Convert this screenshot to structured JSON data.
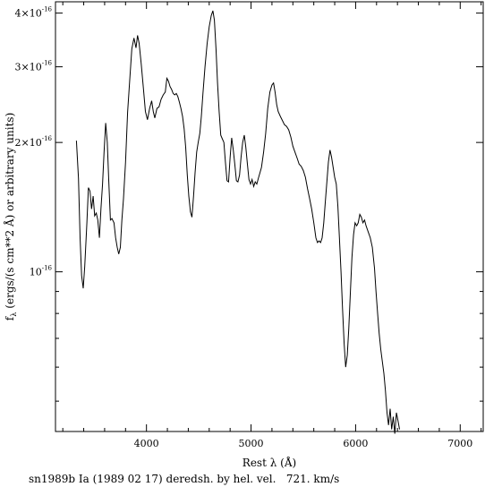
{
  "chart_data": {
    "type": "line",
    "xlabel": "Rest λ (Å)",
    "ylabel": "fλ (ergs/(s cm**2 Å) or arbitrary units)",
    "ylabel_main": "(ergs/(s cm**2 Å) or arbitrary units)",
    "ylabel_symbol": "f",
    "ylabel_sub": "λ",
    "caption": "sn1989b Ia (1989 02 17) deredsh. by hel. vel.   721. km/s",
    "xlim": [
      3130,
      7220
    ],
    "ylim": [
      7.2e-16,
      4.25e-16
    ],
    "y_scale": "log",
    "x_ticks": [
      {
        "value": 4000,
        "label": "4000"
      },
      {
        "value": 5000,
        "label": "5000"
      },
      {
        "value": 6000,
        "label": "6000"
      },
      {
        "value": 7000,
        "label": "7000"
      }
    ],
    "y_ticks": [
      {
        "value": 4e-16,
        "label_mant": "4×10",
        "label_exp": "-16"
      },
      {
        "value": 3e-16,
        "label_mant": "3×10",
        "label_exp": "-16"
      },
      {
        "value": 2e-16,
        "label_mant": "2×10",
        "label_exp": "-16"
      },
      {
        "value": 1e-16,
        "label_mant": "10",
        "label_exp": "-16"
      }
    ],
    "series": [
      {
        "color": "#000000",
        "points": [
          [
            3330,
            2.02e-16
          ],
          [
            3350,
            1.65e-16
          ],
          [
            3365,
            1.2e-16
          ],
          [
            3380,
            9.8e-17
          ],
          [
            3395,
            9.15e-17
          ],
          [
            3410,
            1.03e-16
          ],
          [
            3430,
            1.3e-16
          ],
          [
            3445,
            1.57e-16
          ],
          [
            3460,
            1.54e-16
          ],
          [
            3475,
            1.4e-16
          ],
          [
            3490,
            1.5e-16
          ],
          [
            3505,
            1.35e-16
          ],
          [
            3520,
            1.37e-16
          ],
          [
            3535,
            1.32e-16
          ],
          [
            3550,
            1.2e-16
          ],
          [
            3565,
            1.4e-16
          ],
          [
            3580,
            1.6e-16
          ],
          [
            3595,
            1.9e-16
          ],
          [
            3610,
            2.22e-16
          ],
          [
            3625,
            2e-16
          ],
          [
            3640,
            1.62e-16
          ],
          [
            3655,
            1.32e-16
          ],
          [
            3670,
            1.33e-16
          ],
          [
            3690,
            1.3e-16
          ],
          [
            3705,
            1.2e-16
          ],
          [
            3720,
            1.14e-16
          ],
          [
            3735,
            1.1e-16
          ],
          [
            3750,
            1.14e-16
          ],
          [
            3765,
            1.32e-16
          ],
          [
            3780,
            1.48e-16
          ],
          [
            3800,
            1.8e-16
          ],
          [
            3820,
            2.35e-16
          ],
          [
            3840,
            2.8e-16
          ],
          [
            3860,
            3.3e-16
          ],
          [
            3880,
            3.5e-16
          ],
          [
            3900,
            3.32e-16
          ],
          [
            3915,
            3.55e-16
          ],
          [
            3930,
            3.4e-16
          ],
          [
            3950,
            3.05e-16
          ],
          [
            3970,
            2.68e-16
          ],
          [
            3990,
            2.36e-16
          ],
          [
            4010,
            2.26e-16
          ],
          [
            4030,
            2.4e-16
          ],
          [
            4050,
            2.5e-16
          ],
          [
            4065,
            2.36e-16
          ],
          [
            4080,
            2.28e-16
          ],
          [
            4100,
            2.4e-16
          ],
          [
            4120,
            2.42e-16
          ],
          [
            4140,
            2.52e-16
          ],
          [
            4160,
            2.58e-16
          ],
          [
            4180,
            2.62e-16
          ],
          [
            4195,
            2.82e-16
          ],
          [
            4210,
            2.78e-16
          ],
          [
            4225,
            2.7e-16
          ],
          [
            4240,
            2.66e-16
          ],
          [
            4255,
            2.6e-16
          ],
          [
            4270,
            2.58e-16
          ],
          [
            4285,
            2.6e-16
          ],
          [
            4300,
            2.56e-16
          ],
          [
            4315,
            2.48e-16
          ],
          [
            4330,
            2.4e-16
          ],
          [
            4345,
            2.3e-16
          ],
          [
            4360,
            2.15e-16
          ],
          [
            4375,
            1.95e-16
          ],
          [
            4390,
            1.68e-16
          ],
          [
            4405,
            1.5e-16
          ],
          [
            4420,
            1.38e-16
          ],
          [
            4435,
            1.34e-16
          ],
          [
            4450,
            1.5e-16
          ],
          [
            4465,
            1.7e-16
          ],
          [
            4480,
            1.9e-16
          ],
          [
            4495,
            2e-16
          ],
          [
            4510,
            2.1e-16
          ],
          [
            4525,
            2.3e-16
          ],
          [
            4540,
            2.6e-16
          ],
          [
            4560,
            3e-16
          ],
          [
            4580,
            3.4e-16
          ],
          [
            4600,
            3.72e-16
          ],
          [
            4620,
            3.95e-16
          ],
          [
            4635,
            4.05e-16
          ],
          [
            4650,
            3.85e-16
          ],
          [
            4665,
            3.3e-16
          ],
          [
            4680,
            2.75e-16
          ],
          [
            4695,
            2.36e-16
          ],
          [
            4710,
            2.08e-16
          ],
          [
            4725,
            2.04e-16
          ],
          [
            4740,
            2e-16
          ],
          [
            4755,
            1.8e-16
          ],
          [
            4770,
            1.63e-16
          ],
          [
            4785,
            1.62e-16
          ],
          [
            4800,
            1.85e-16
          ],
          [
            4815,
            2.05e-16
          ],
          [
            4830,
            1.92e-16
          ],
          [
            4845,
            1.78e-16
          ],
          [
            4860,
            1.63e-16
          ],
          [
            4875,
            1.62e-16
          ],
          [
            4890,
            1.68e-16
          ],
          [
            4905,
            1.85e-16
          ],
          [
            4920,
            2e-16
          ],
          [
            4935,
            2.08e-16
          ],
          [
            4950,
            1.95e-16
          ],
          [
            4965,
            1.78e-16
          ],
          [
            4980,
            1.64e-16
          ],
          [
            4995,
            1.6e-16
          ],
          [
            5010,
            1.64e-16
          ],
          [
            5025,
            1.58e-16
          ],
          [
            5040,
            1.62e-16
          ],
          [
            5055,
            1.6e-16
          ],
          [
            5070,
            1.65e-16
          ],
          [
            5085,
            1.7e-16
          ],
          [
            5100,
            1.75e-16
          ],
          [
            5120,
            1.9e-16
          ],
          [
            5140,
            2.1e-16
          ],
          [
            5160,
            2.4e-16
          ],
          [
            5180,
            2.62e-16
          ],
          [
            5200,
            2.72e-16
          ],
          [
            5215,
            2.75e-16
          ],
          [
            5230,
            2.62e-16
          ],
          [
            5245,
            2.45e-16
          ],
          [
            5260,
            2.36e-16
          ],
          [
            5280,
            2.3e-16
          ],
          [
            5300,
            2.25e-16
          ],
          [
            5320,
            2.2e-16
          ],
          [
            5340,
            2.18e-16
          ],
          [
            5360,
            2.14e-16
          ],
          [
            5380,
            2.06e-16
          ],
          [
            5400,
            1.96e-16
          ],
          [
            5420,
            1.9e-16
          ],
          [
            5440,
            1.84e-16
          ],
          [
            5460,
            1.78e-16
          ],
          [
            5480,
            1.76e-16
          ],
          [
            5500,
            1.72e-16
          ],
          [
            5520,
            1.66e-16
          ],
          [
            5540,
            1.56e-16
          ],
          [
            5560,
            1.48e-16
          ],
          [
            5580,
            1.4e-16
          ],
          [
            5600,
            1.3e-16
          ],
          [
            5620,
            1.2e-16
          ],
          [
            5635,
            1.17e-16
          ],
          [
            5650,
            1.18e-16
          ],
          [
            5665,
            1.17e-16
          ],
          [
            5680,
            1.2e-16
          ],
          [
            5695,
            1.3e-16
          ],
          [
            5710,
            1.45e-16
          ],
          [
            5725,
            1.62e-16
          ],
          [
            5740,
            1.8e-16
          ],
          [
            5755,
            1.92e-16
          ],
          [
            5770,
            1.85e-16
          ],
          [
            5785,
            1.75e-16
          ],
          [
            5800,
            1.66e-16
          ],
          [
            5815,
            1.6e-16
          ],
          [
            5830,
            1.42e-16
          ],
          [
            5845,
            1.2e-16
          ],
          [
            5860,
            1e-16
          ],
          [
            5875,
            8.2e-17
          ],
          [
            5890,
            6.8e-17
          ],
          [
            5905,
            6e-17
          ],
          [
            5920,
            6.4e-17
          ],
          [
            5935,
            7.4e-17
          ],
          [
            5950,
            9e-17
          ],
          [
            5965,
            1.08e-16
          ],
          [
            5980,
            1.22e-16
          ],
          [
            5995,
            1.3e-16
          ],
          [
            6010,
            1.28e-16
          ],
          [
            6025,
            1.3e-16
          ],
          [
            6040,
            1.36e-16
          ],
          [
            6055,
            1.34e-16
          ],
          [
            6070,
            1.3e-16
          ],
          [
            6085,
            1.32e-16
          ],
          [
            6100,
            1.28e-16
          ],
          [
            6120,
            1.24e-16
          ],
          [
            6140,
            1.2e-16
          ],
          [
            6160,
            1.14e-16
          ],
          [
            6180,
            1.02e-16
          ],
          [
            6195,
            9e-17
          ],
          [
            6210,
            8e-17
          ],
          [
            6225,
            7.2e-17
          ],
          [
            6240,
            6.6e-17
          ],
          [
            6255,
            6.2e-17
          ],
          [
            6270,
            5.8e-17
          ],
          [
            6285,
            5.3e-17
          ],
          [
            6300,
            4.7e-17
          ],
          [
            6315,
            4.4e-17
          ],
          [
            6330,
            4.8e-17
          ],
          [
            6345,
            4.3e-17
          ],
          [
            6360,
            4.6e-17
          ],
          [
            6375,
            4.2e-17
          ],
          [
            6390,
            4.7e-17
          ],
          [
            6405,
            4.5e-17
          ],
          [
            6420,
            4.3e-17
          ]
        ]
      }
    ]
  }
}
